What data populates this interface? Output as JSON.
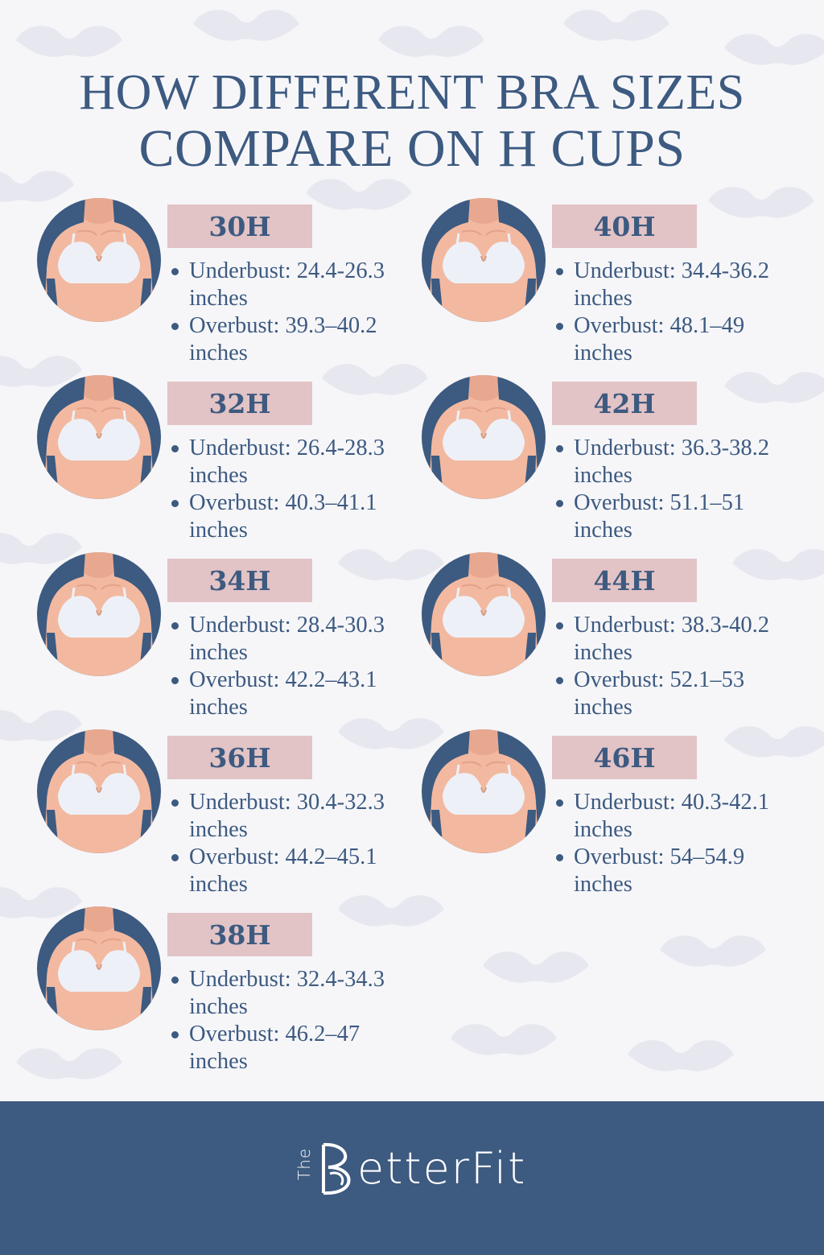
{
  "title": {
    "line1": "HOW DIFFERENT BRA SIZES",
    "line2": "COMPARE ON H CUPS"
  },
  "colors": {
    "navy": "#3d5a80",
    "badge": "#e2c3c6",
    "skin": "#f2b9a0",
    "bra": "#eef0f7",
    "background": "#f6f6f9"
  },
  "sizes": [
    {
      "label": "30H",
      "underbust": "Underbust: 24.4-26.3",
      "underbust_unit": "inches",
      "overbust": "Overbust: 39.3–40.2",
      "overbust_unit": "inches"
    },
    {
      "label": "32H",
      "underbust": "Underbust: 26.4-28.3",
      "underbust_unit": "inches",
      "overbust": "Overbust: 40.3–41.1",
      "overbust_unit": "inches"
    },
    {
      "label": "34H",
      "underbust": "Underbust: 28.4-30.3",
      "underbust_unit": "inches",
      "overbust": "Overbust: 42.2–43.1",
      "overbust_unit": "inches"
    },
    {
      "label": "36H",
      "underbust": "Underbust: 30.4-32.3",
      "underbust_unit": "inches",
      "overbust": "Overbust: 44.2–45.1",
      "overbust_unit": "inches"
    },
    {
      "label": "38H",
      "underbust": "Underbust: 32.4-34.3",
      "underbust_unit": "inches",
      "overbust": "Overbust: 46.2–47",
      "overbust_unit": "inches"
    },
    {
      "label": "40H",
      "underbust": "Underbust: 34.4-36.2",
      "underbust_unit": "inches",
      "overbust": "Overbust: 48.1–49",
      "overbust_unit": "inches"
    },
    {
      "label": "42H",
      "underbust": "Underbust: 36.3-38.2",
      "underbust_unit": "inches",
      "overbust": "Overbust: 51.1–51",
      "overbust_unit": "inches"
    },
    {
      "label": "44H",
      "underbust": "Underbust: 38.3-40.2",
      "underbust_unit": "inches",
      "overbust": "Overbust: 52.1–53",
      "overbust_unit": "inches"
    },
    {
      "label": "46H",
      "underbust": "Underbust: 40.3-42.1",
      "underbust_unit": "inches",
      "overbust": "Overbust: 54–54.9",
      "overbust_unit": "inches"
    }
  ],
  "footer": {
    "logo_small": "The",
    "logo_word": "etterFit"
  }
}
